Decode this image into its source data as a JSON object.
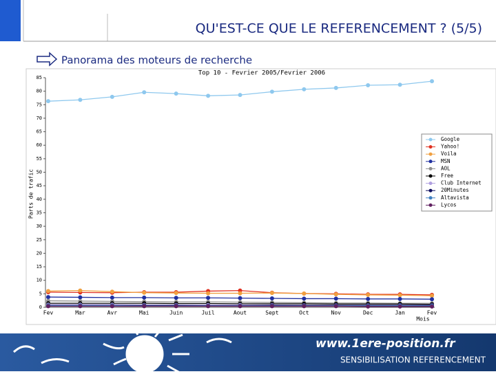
{
  "header": {
    "title": "QU'EST-CE QUE LE REFERENCEMENT ? (5/5)",
    "subtitle": "Panorama des moteurs de recherche"
  },
  "chart_data": {
    "type": "line",
    "title": "Top 10 - Fevrier 2005/Fevrier 2006",
    "y_label": "Parts de trafic",
    "x_label": "Mois",
    "categories": [
      "Fev",
      "Mar",
      "Avr",
      "Mai",
      "Juin",
      "Juil",
      "Aout",
      "Sept",
      "Oct",
      "Nov",
      "Dec",
      "Jan",
      "Fev"
    ],
    "ylim": [
      0,
      85
    ],
    "yticks": [
      0,
      5,
      10,
      15,
      20,
      25,
      30,
      35,
      40,
      45,
      50,
      55,
      60,
      65,
      70,
      75,
      80,
      85
    ],
    "legend": "right",
    "series": [
      {
        "name": "Google",
        "color": "#8ec8ee",
        "values": [
          76.3,
          76.8,
          77.9,
          79.6,
          79.1,
          78.3,
          78.6,
          79.8,
          80.7,
          81.2,
          82.2,
          82.4,
          83.7
        ]
      },
      {
        "name": "Yahoo!",
        "color": "#e03020",
        "values": [
          5.6,
          5.5,
          5.4,
          5.6,
          5.6,
          6.0,
          6.2,
          5.4,
          5.1,
          5.0,
          4.8,
          4.8,
          4.6
        ]
      },
      {
        "name": "Voila",
        "color": "#f0a040",
        "values": [
          6.0,
          6.2,
          5.8,
          5.4,
          5.3,
          5.2,
          5.2,
          5.3,
          5.1,
          4.8,
          4.6,
          4.5,
          4.3
        ]
      },
      {
        "name": "MSN",
        "color": "#2030a0",
        "values": [
          3.8,
          3.7,
          3.6,
          3.6,
          3.5,
          3.5,
          3.4,
          3.3,
          3.2,
          3.2,
          3.1,
          3.1,
          3.0
        ]
      },
      {
        "name": "AOL",
        "color": "#909090",
        "values": [
          2.4,
          2.3,
          2.2,
          2.1,
          2.0,
          2.0,
          1.9,
          1.8,
          1.7,
          1.6,
          1.6,
          1.5,
          1.5
        ]
      },
      {
        "name": "Free",
        "color": "#000000",
        "values": [
          1.5,
          1.5,
          1.5,
          1.5,
          1.4,
          1.4,
          1.3,
          1.3,
          1.3,
          1.2,
          1.2,
          1.2,
          1.1
        ]
      },
      {
        "name": "Club Internet",
        "color": "#b0a0e0",
        "values": [
          1.0,
          1.0,
          1.0,
          0.9,
          0.9,
          0.9,
          0.9,
          0.9,
          0.8,
          0.8,
          0.8,
          0.8,
          0.8
        ]
      },
      {
        "name": "20Minutes",
        "color": "#101060",
        "values": [
          0.7,
          0.7,
          0.7,
          0.7,
          0.7,
          0.6,
          0.6,
          0.7,
          0.7,
          0.7,
          0.7,
          0.7,
          0.7
        ]
      },
      {
        "name": "Altavista",
        "color": "#4080c0",
        "values": [
          0.6,
          0.6,
          0.6,
          0.5,
          0.5,
          0.5,
          0.5,
          0.5,
          0.5,
          0.5,
          0.5,
          0.5,
          0.5
        ]
      },
      {
        "name": "Lycos",
        "color": "#602060",
        "values": [
          0.4,
          0.4,
          0.4,
          0.4,
          0.4,
          0.4,
          0.4,
          0.4,
          0.4,
          0.4,
          0.3,
          0.3,
          0.3
        ]
      }
    ]
  },
  "footer": {
    "url": "www.1ere-position.fr",
    "tagline": "SENSIBILISATION REFERENCEMENT"
  }
}
